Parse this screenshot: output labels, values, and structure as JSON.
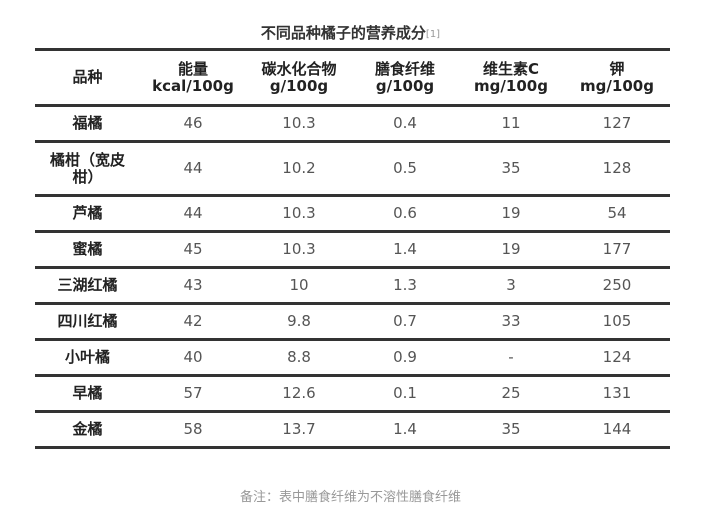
{
  "title": "不同品种橘子的营养成分",
  "title_ref": "[1]",
  "table": {
    "header": [
      [
        "品种"
      ],
      [
        "能量",
        "kcal/100g"
      ],
      [
        "碳水化合物",
        "g/100g"
      ],
      [
        "膳食纤维",
        "g/100g"
      ],
      [
        "维生素C",
        "mg/100g"
      ],
      [
        "钾",
        "mg/100g"
      ]
    ],
    "rows": [
      [
        "福橘",
        46,
        10.3,
        0.4,
        11,
        127
      ],
      [
        "橘柑（宽皮柑）",
        44,
        10.2,
        0.5,
        35,
        128
      ],
      [
        "芦橘",
        44,
        10.3,
        0.6,
        19,
        54
      ],
      [
        "蜜橘",
        45,
        10.3,
        1.4,
        19,
        177
      ],
      [
        "三湖红橘",
        43,
        10,
        1.3,
        3,
        250
      ],
      [
        "四川红橘",
        42,
        9.8,
        0.7,
        33,
        105
      ],
      [
        "小叶橘",
        40,
        8.8,
        0.9,
        "-",
        124
      ],
      [
        "早橘",
        57,
        12.6,
        0.1,
        25,
        131
      ],
      [
        "金橘",
        58,
        13.7,
        1.4,
        35,
        144
      ]
    ]
  },
  "note": "备注：表中膳食纤维为不溶性膳食纤维"
}
